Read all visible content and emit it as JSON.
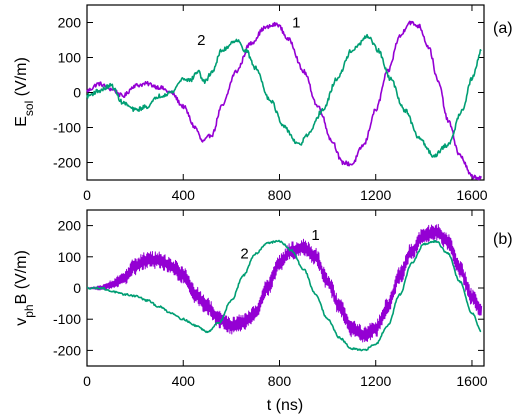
{
  "chart_data": [
    {
      "type": "line",
      "panel_label": "(a)",
      "ylabel": {
        "main": "E",
        "sub": "sol",
        "units": " (V/m)"
      },
      "xlabel": "",
      "xlim": [
        0,
        1650
      ],
      "ylim": [
        -250,
        250
      ],
      "xticks": [
        0,
        400,
        800,
        1200,
        1600
      ],
      "yticks": [
        -200,
        -100,
        0,
        100,
        200
      ],
      "grid": false,
      "series": [
        {
          "name": "1",
          "color": "#9400d3",
          "noise": 6,
          "label_pos": [
            870,
            200
          ],
          "x": [
            0,
            50,
            100,
            150,
            200,
            250,
            300,
            350,
            400,
            450,
            480,
            520,
            560,
            620,
            680,
            740,
            790,
            840,
            900,
            960,
            1020,
            1060,
            1100,
            1150,
            1200,
            1250,
            1300,
            1340,
            1380,
            1420,
            1460,
            1500,
            1550,
            1600,
            1640
          ],
          "y": [
            5,
            25,
            10,
            -10,
            20,
            25,
            15,
            0,
            -40,
            -100,
            -140,
            -120,
            -40,
            60,
            140,
            185,
            195,
            150,
            60,
            -40,
            -140,
            -200,
            -205,
            -150,
            -50,
            60,
            160,
            200,
            190,
            130,
            30,
            -80,
            -180,
            -240,
            -245
          ]
        },
        {
          "name": "2",
          "color": "#009e73",
          "noise": 6,
          "label_pos": [
            475,
            150
          ],
          "x": [
            0,
            50,
            100,
            150,
            200,
            250,
            300,
            350,
            400,
            430,
            460,
            490,
            520,
            560,
            620,
            660,
            700,
            760,
            820,
            880,
            920,
            980,
            1040,
            1100,
            1170,
            1210,
            1260,
            1320,
            1380,
            1440,
            1500,
            1560,
            1600,
            1640
          ],
          "y": [
            -10,
            5,
            20,
            -30,
            -50,
            -40,
            -10,
            0,
            40,
            35,
            60,
            30,
            60,
            120,
            150,
            120,
            70,
            -20,
            -100,
            -150,
            -120,
            -50,
            40,
            120,
            160,
            120,
            40,
            -50,
            -130,
            -180,
            -150,
            -50,
            40,
            120
          ]
        }
      ]
    },
    {
      "type": "line",
      "panel_label": "(b)",
      "ylabel": {
        "main": "v",
        "sub": "ph",
        "units": "B (V/m)"
      },
      "xlabel": "t (ns)",
      "xlim": [
        0,
        1650
      ],
      "ylim": [
        -250,
        250
      ],
      "xticks": [
        0,
        400,
        800,
        1200,
        1600
      ],
      "yticks": [
        -200,
        -100,
        0,
        100,
        200
      ],
      "grid": false,
      "series": [
        {
          "name": "1",
          "color": "#9400d3",
          "noise": 28,
          "label_pos": [
            950,
            170
          ],
          "x": [
            0,
            60,
            100,
            150,
            200,
            250,
            300,
            350,
            400,
            450,
            500,
            550,
            600,
            650,
            700,
            750,
            800,
            850,
            900,
            950,
            1000,
            1050,
            1100,
            1150,
            1200,
            1250,
            1300,
            1350,
            1400,
            1450,
            1500,
            1550,
            1600,
            1640
          ],
          "y": [
            0,
            0,
            10,
            30,
            70,
            90,
            90,
            70,
            40,
            -20,
            -60,
            -100,
            -120,
            -110,
            -80,
            0,
            80,
            120,
            130,
            100,
            20,
            -60,
            -130,
            -150,
            -130,
            -60,
            40,
            120,
            170,
            180,
            150,
            60,
            -30,
            -70
          ]
        },
        {
          "name": "2",
          "color": "#009e73",
          "noise": 3,
          "label_pos": [
            655,
            110
          ],
          "x": [
            0,
            60,
            100,
            150,
            200,
            250,
            300,
            350,
            400,
            450,
            500,
            550,
            600,
            650,
            700,
            750,
            800,
            850,
            900,
            950,
            1000,
            1050,
            1100,
            1150,
            1200,
            1250,
            1300,
            1350,
            1400,
            1450,
            1500,
            1550,
            1600,
            1640
          ],
          "y": [
            0,
            0,
            -10,
            -20,
            -25,
            -40,
            -60,
            -80,
            -100,
            -120,
            -140,
            -110,
            -40,
            40,
            110,
            145,
            150,
            120,
            60,
            -20,
            -100,
            -160,
            -195,
            -200,
            -180,
            -120,
            -20,
            80,
            140,
            150,
            110,
            20,
            -80,
            -140
          ]
        }
      ]
    }
  ]
}
